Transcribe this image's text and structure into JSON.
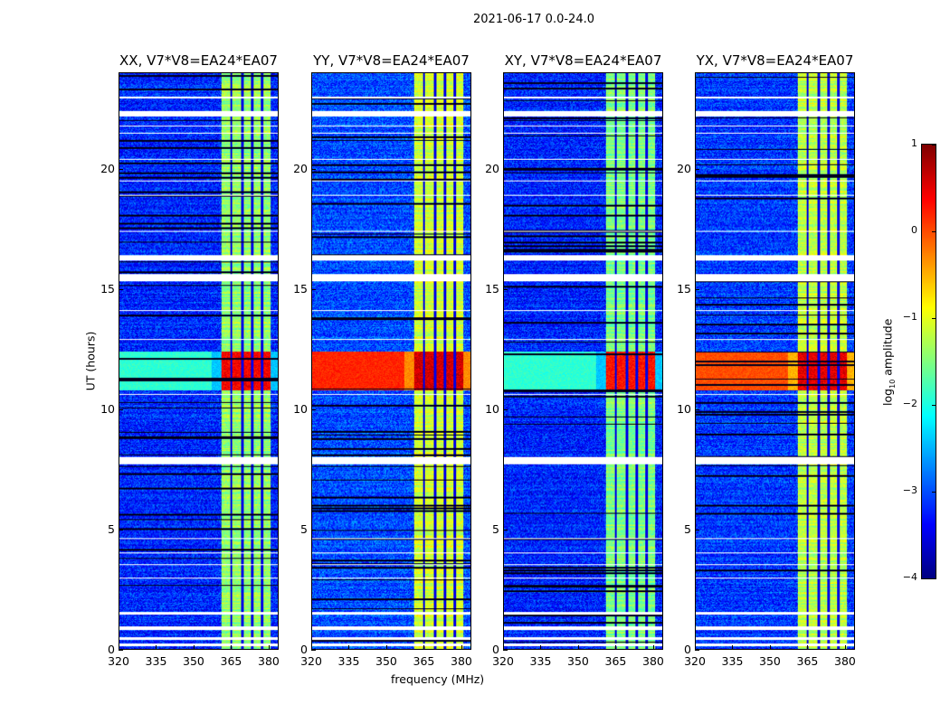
{
  "suptitle": "2021-06-17 0.0-24.0",
  "xlabel": "frequency (MHz)",
  "ylabel": "UT (hours)",
  "colorbar": {
    "label_prefix": "log",
    "label_sub": "10",
    "label_suffix": " amplitude",
    "ticks": [
      "1",
      "0",
      "−1",
      "−2",
      "−3",
      "−4"
    ],
    "tick_values": [
      1,
      0,
      -1,
      -2,
      -3,
      -4
    ],
    "range": [
      -4,
      1
    ],
    "colormap": "jet"
  },
  "chart_data": {
    "type": "heatmap",
    "xlim": [
      320,
      384
    ],
    "ylim": [
      0,
      24
    ],
    "xticks": [
      320,
      335,
      350,
      365,
      380
    ],
    "xtick_labels": [
      "320",
      "335",
      "350",
      "365",
      "380"
    ],
    "yticks": [
      0,
      5,
      10,
      15,
      20
    ],
    "ytick_labels": [
      "0",
      "5",
      "10",
      "15",
      "20"
    ],
    "band_mhz": [
      361,
      381
    ],
    "band_gaps_mhz": [
      365,
      369.5,
      373.5,
      377.5
    ],
    "rfi_hours": [
      10.8,
      12.4
    ],
    "flagged_hours": [
      [
        0.15,
        0.25
      ],
      [
        0.4,
        0.5
      ],
      [
        0.8,
        0.95
      ],
      [
        1.45,
        1.55
      ],
      [
        2.95,
        3.0
      ],
      [
        3.5,
        3.55
      ],
      [
        4.0,
        4.05
      ],
      [
        4.6,
        4.65
      ],
      [
        7.7,
        8.0
      ],
      [
        10.6,
        10.65
      ],
      [
        12.9,
        12.95
      ],
      [
        14.1,
        14.15
      ],
      [
        15.35,
        15.65
      ],
      [
        16.2,
        16.45
      ],
      [
        17.4,
        17.45
      ],
      [
        18.9,
        18.95
      ],
      [
        19.5,
        19.55
      ],
      [
        20.4,
        20.45
      ],
      [
        21.5,
        21.55
      ],
      [
        21.8,
        21.85
      ],
      [
        22.2,
        22.45
      ],
      [
        22.95,
        23.05
      ]
    ],
    "panels": [
      {
        "title": "XX, V7*V8=EA24*EA07",
        "base": -3.2,
        "band": -1.4,
        "rfi_left": -1.9,
        "rfi_band": 0.4
      },
      {
        "title": "YY, V7*V8=EA24*EA07",
        "base": -3.0,
        "band": -1.1,
        "rfi_left": 0.2,
        "rfi_band": 0.6
      },
      {
        "title": "XY, V7*V8=EA24*EA07",
        "base": -3.2,
        "band": -1.5,
        "rfi_left": -1.9,
        "rfi_band": 0.3
      },
      {
        "title": "YX, V7*V8=EA24*EA07",
        "base": -3.1,
        "band": -1.2,
        "rfi_left": 0.0,
        "rfi_band": 0.5
      }
    ]
  }
}
